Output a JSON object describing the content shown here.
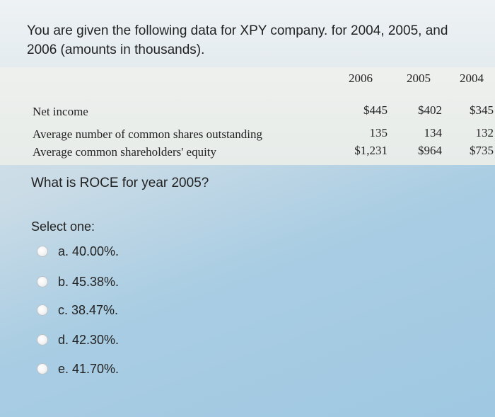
{
  "question": {
    "line1": "You are given the following data for XPY company. for 2004, 2005, and",
    "line2": "2006 (amounts in thousands)."
  },
  "table": {
    "years": [
      "2006",
      "2005",
      "2004"
    ],
    "rows": [
      {
        "label": "Net income",
        "values": [
          "$445",
          "$402",
          "$345"
        ]
      },
      {
        "label": "Average number of common shares outstanding",
        "values": [
          "135",
          "134",
          "132"
        ]
      },
      {
        "label": "Average common shareholders' equity",
        "values": [
          "$1,231",
          "$964",
          "$735"
        ]
      }
    ]
  },
  "prompt": "What is ROCE for year 2005?",
  "select_label": "Select one:",
  "options": [
    {
      "label": "a. 40.00%."
    },
    {
      "label": "b. 45.38%."
    },
    {
      "label": "c. 38.47%."
    },
    {
      "label": "d. 42.30%."
    },
    {
      "label": "e. 41.70%."
    }
  ]
}
